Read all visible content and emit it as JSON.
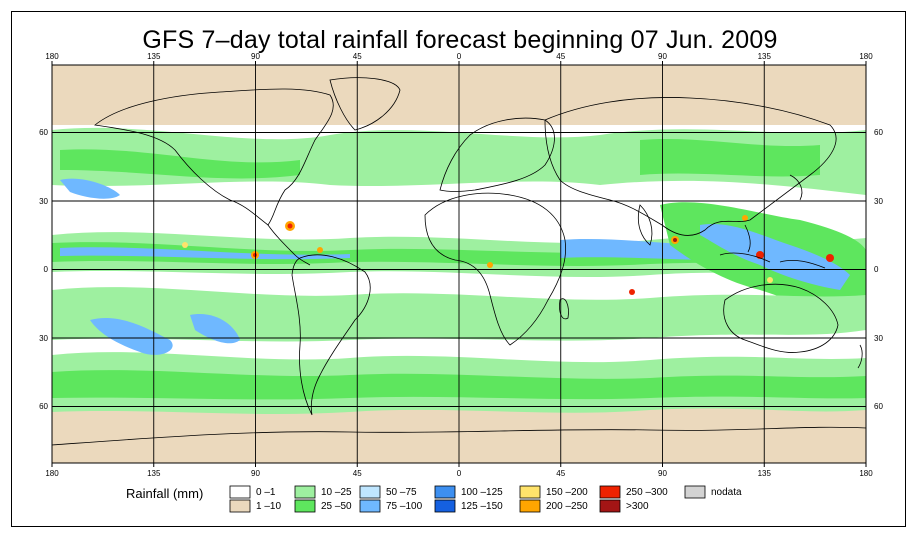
{
  "title": "GFS 7–day total rainfall forecast beginning 07 Jun. 2009",
  "axes": {
    "lon_labels": [
      "180",
      "135",
      "90",
      "45",
      "0",
      "45",
      "90",
      "135",
      "180"
    ],
    "lat_labels_top_to_bottom": [
      "60",
      "30",
      "0",
      "30",
      "60"
    ]
  },
  "legend": {
    "title": "Rainfall (mm)",
    "items": [
      {
        "label": "0 –1",
        "color": "#ffffff"
      },
      {
        "label": "1 –10",
        "color": "#ebd9bd"
      },
      {
        "label": "10 –25",
        "color": "#9ef0a0"
      },
      {
        "label": "25 –50",
        "color": "#5ee65e"
      },
      {
        "label": "50 –75",
        "color": "#bfe6ff"
      },
      {
        "label": "75 –100",
        "color": "#6fb8ff"
      },
      {
        "label": "100 –125",
        "color": "#3d8ff0"
      },
      {
        "label": "125 –150",
        "color": "#1560e0"
      },
      {
        "label": "150 –200",
        "color": "#ffe36b"
      },
      {
        "label": "200 –250",
        "color": "#ffa500"
      },
      {
        "label": "250 –300",
        "color": "#ee2200"
      },
      {
        "label": ">300",
        "color": "#a31515"
      },
      {
        "label": "nodata",
        "color": "#d3d3d3"
      }
    ]
  },
  "colors": {
    "ocean_bg": "#ffffff",
    "coast": "#000000",
    "grid": "#000000"
  }
}
